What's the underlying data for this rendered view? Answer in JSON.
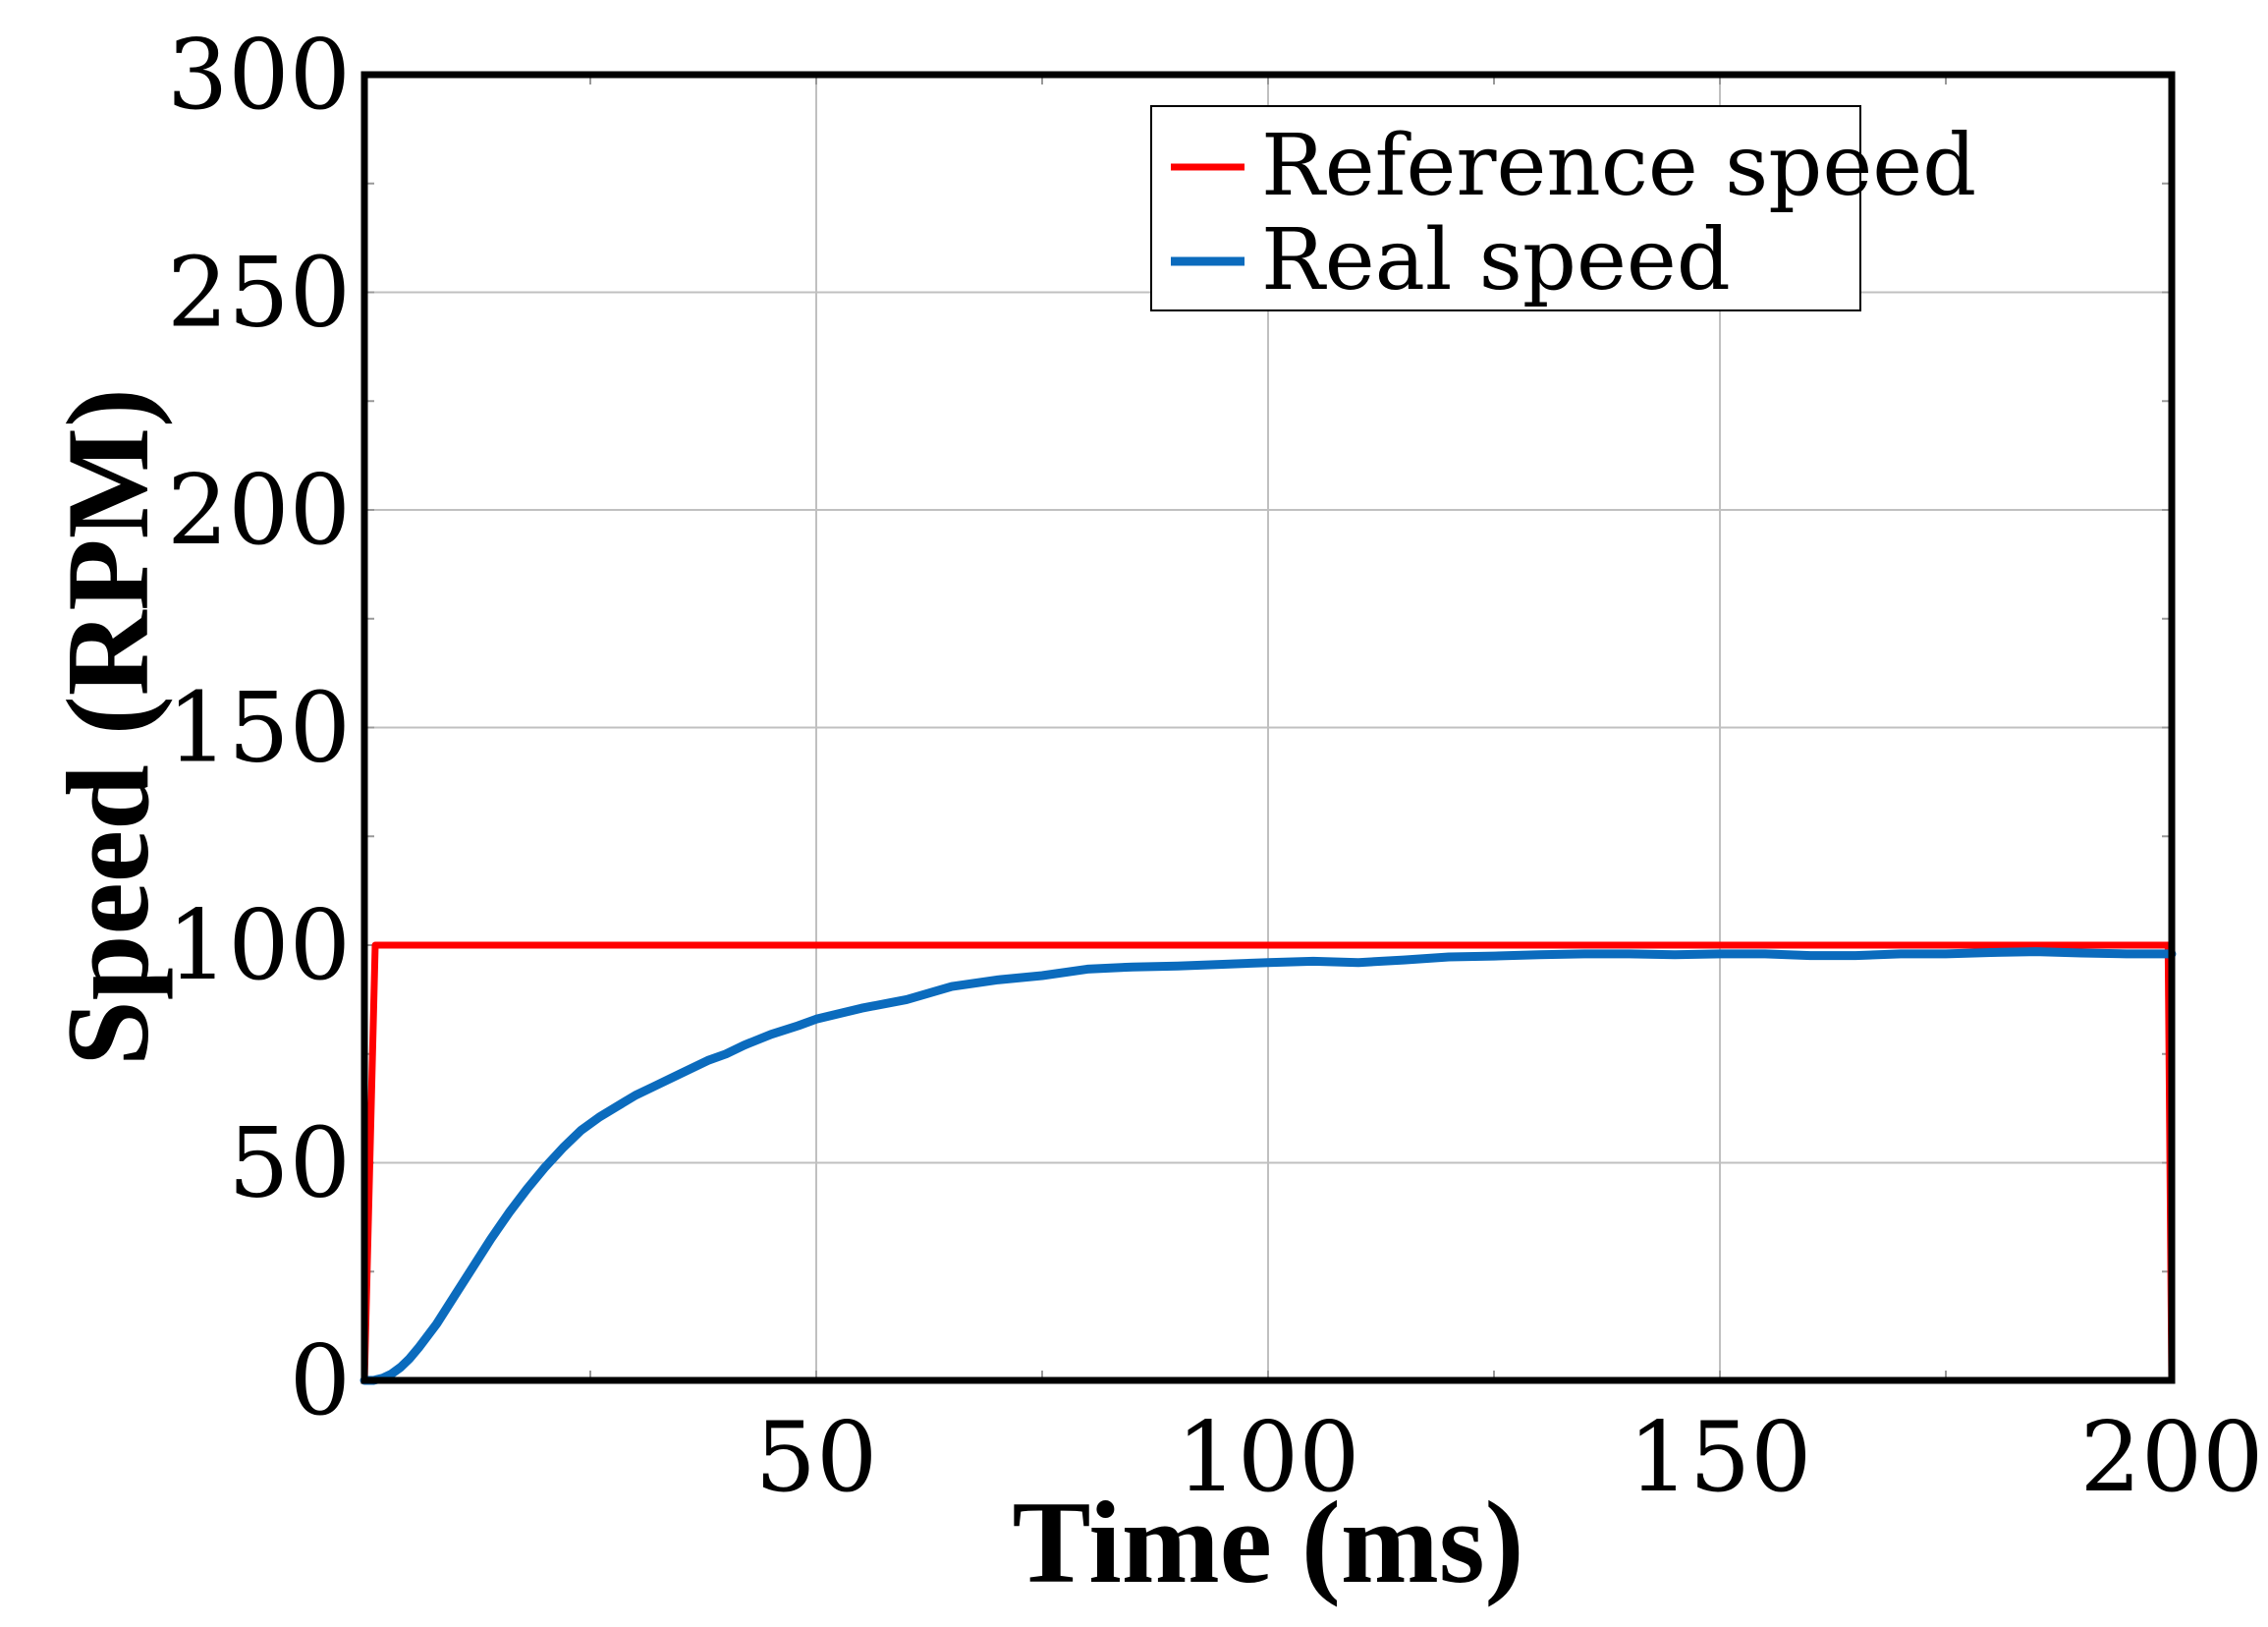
{
  "chart_data": {
    "type": "line",
    "xlabel": "Time (ms)",
    "ylabel": "Speed (RPM)",
    "xlim": [
      0,
      200
    ],
    "ylim": [
      0,
      300
    ],
    "xticks": [
      50,
      100,
      150,
      200
    ],
    "yticks": [
      0,
      50,
      100,
      150,
      200,
      250,
      300
    ],
    "grid": true,
    "legend_position": "top-right",
    "series": [
      {
        "name": "Reference speed",
        "color": "#ff0000",
        "x": [
          0,
          1.2,
          199.6,
          200
        ],
        "y": [
          0,
          100,
          100,
          0
        ]
      },
      {
        "name": "Real speed",
        "color": "#0b6bbd",
        "x": [
          0,
          1,
          2,
          3,
          4,
          5,
          6,
          8,
          10,
          12,
          14,
          16,
          18,
          20,
          22,
          24,
          26,
          28,
          30,
          32,
          35,
          38,
          40,
          42,
          45,
          48,
          50,
          55,
          60,
          65,
          70,
          75,
          80,
          85,
          90,
          95,
          100,
          105,
          110,
          115,
          120,
          125,
          130,
          135,
          140,
          145,
          150,
          155,
          160,
          165,
          170,
          175,
          180,
          185,
          190,
          195,
          200
        ],
        "y": [
          0,
          0,
          0.5,
          1.5,
          3,
          5,
          7.5,
          13,
          19.5,
          26,
          32.5,
          38.5,
          44,
          49,
          53.5,
          57.5,
          60.5,
          63,
          65.5,
          67.5,
          70.5,
          73.5,
          75,
          77,
          79.5,
          81.5,
          83,
          85.5,
          87.5,
          90.5,
          92,
          93,
          94.5,
          95,
          95.2,
          95.6,
          96,
          96.3,
          96,
          96.6,
          97.3,
          97.5,
          97.8,
          98,
          98,
          97.8,
          98,
          98,
          97.6,
          97.6,
          98,
          98,
          98.3,
          98.5,
          98.2,
          98,
          98
        ]
      }
    ]
  }
}
